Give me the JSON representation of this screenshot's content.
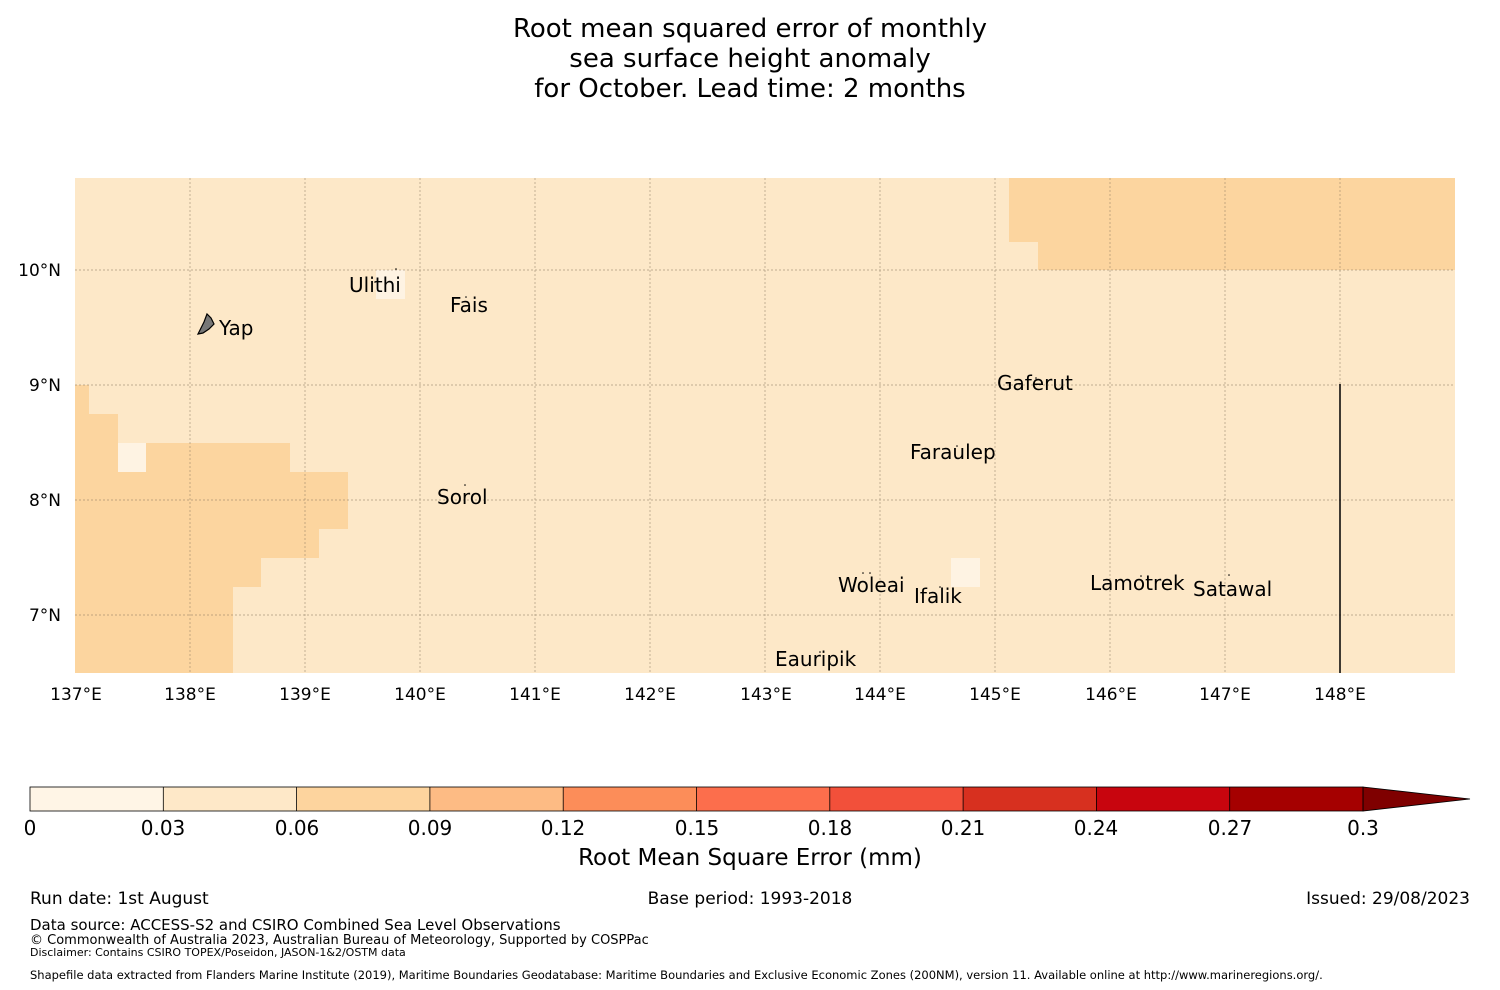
{
  "title": {
    "line1": "Root mean squared error of monthly",
    "line2": "sea surface height anomaly",
    "line3": "for October. Lead time: 2 months"
  },
  "map": {
    "lon_labels": [
      "137°E",
      "138°E",
      "139°E",
      "140°E",
      "141°E",
      "142°E",
      "143°E",
      "144°E",
      "145°E",
      "146°E",
      "147°E",
      "148°E"
    ],
    "lat_labels": [
      "10°N",
      "9°N",
      "8°N",
      "7°N"
    ],
    "islands": [
      "Ulithi",
      "Fais",
      "Yap",
      "Gaferut",
      "Faraulep",
      "Sorol",
      "Woleai",
      "Ifalik",
      "Lamotrek",
      "Satawal",
      "Eauripik"
    ],
    "colors": {
      "light": "#fde8c8",
      "mid": "#fcd59f",
      "lightest": "#fef3e3"
    }
  },
  "colorbar": {
    "ticks": [
      "0",
      "0.03",
      "0.06",
      "0.09",
      "0.12",
      "0.15",
      "0.18",
      "0.21",
      "0.24",
      "0.27",
      "0.3"
    ],
    "colors": [
      "#fff5e6",
      "#fee8c8",
      "#fdd49e",
      "#fdbb84",
      "#fc8d59",
      "#fc6e4c",
      "#f2503a",
      "#d7301f",
      "#c8050e",
      "#a50000",
      "#7f0000"
    ],
    "label": "Root Mean Square Error (mm)"
  },
  "footer": {
    "run_date": "Run date: 1st August",
    "base_period": "Base period: 1993-2018",
    "issued": "Issued: 29/08/2023",
    "data_source": "Data source: ACCESS-S2 and CSIRO Combined Sea Level Observations",
    "copyright": "© Commonwealth of Australia 2023, Australian Bureau of Meteorology, Supported by COSPPac",
    "disclaimer": "Disclaimer: Contains CSIRO TOPEX/Poseidon, JASON-1&2/OSTM data",
    "shapefile": "Shapefile data extracted from Flanders Marine Institute (2019), Maritime Boundaries Geodatabase: Maritime Boundaries and Exclusive Economic Zones (200NM), version 11. Available online at http://www.marineregions.org/."
  }
}
